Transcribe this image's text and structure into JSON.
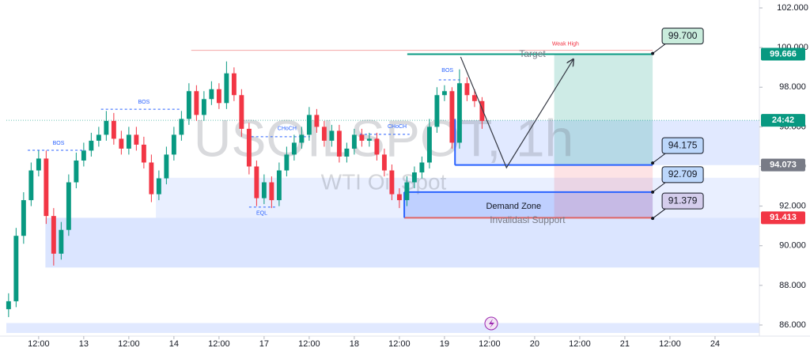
{
  "chart_data": {
    "type": "candlestick",
    "watermark": "USOILSPOT, 1h",
    "watermark_subtitle": "WTI Oil Spot",
    "up_color": "#089981",
    "down_color": "#f23645",
    "x": [
      -8,
      -6,
      -4,
      -2,
      0,
      2,
      4,
      6,
      8,
      10,
      12,
      14,
      16,
      18,
      20,
      22,
      24,
      26,
      28,
      30,
      32,
      34,
      36,
      38,
      40,
      42,
      44,
      46,
      48,
      50,
      52,
      54,
      56,
      58,
      60,
      62,
      64,
      66,
      68,
      70,
      72,
      74,
      76,
      78,
      80,
      82,
      84,
      86,
      88,
      90,
      92,
      94,
      96,
      98,
      100,
      102,
      104,
      106,
      108,
      110,
      112,
      114,
      116,
      118
    ],
    "series": [
      {
        "name": "open",
        "values": [
          86.8,
          87.2,
          90.5,
          92.3,
          93.8,
          94.4,
          91.5,
          89.6,
          90.8,
          93.2,
          94.3,
          94.8,
          95.3,
          95.6,
          96.3,
          95.4,
          94.9,
          95.6,
          95.1,
          94.2,
          92.6,
          93.4,
          94.6,
          95.6,
          96.4,
          97.8,
          96.6,
          97.4,
          97.9,
          97.2,
          98.7,
          97.6,
          95.9,
          94.0,
          92.4,
          93.2,
          92.3,
          93.8,
          94.6,
          95.2,
          95.6,
          96.6,
          96.0,
          95.3,
          95.8,
          94.5,
          94.9,
          95.6,
          95.3,
          95.4,
          94.6,
          93.8,
          92.6,
          92.3,
          93.2,
          93.7,
          94.2,
          96.0,
          97.6,
          97.8,
          95.2,
          98.2,
          97.6,
          97.3
        ]
      },
      {
        "name": "high",
        "values": [
          87.6,
          90.9,
          92.7,
          94.2,
          94.8,
          94.8,
          91.9,
          91.2,
          93.6,
          94.7,
          95.2,
          95.7,
          96.0,
          96.8,
          96.7,
          95.8,
          96.0,
          96.0,
          95.5,
          94.6,
          93.8,
          95.0,
          96.0,
          96.8,
          98.2,
          98.1,
          97.8,
          98.3,
          98.2,
          99.3,
          99.0,
          97.9,
          96.2,
          94.3,
          93.6,
          93.5,
          94.2,
          95.0,
          95.6,
          96.0,
          97.0,
          96.9,
          96.3,
          96.1,
          96.1,
          95.2,
          95.9,
          95.9,
          95.7,
          95.7,
          94.9,
          94.1,
          92.9,
          93.5,
          94.0,
          94.5,
          96.4,
          98.0,
          98.1,
          98.0,
          98.9,
          98.5,
          97.9,
          97.5
        ]
      },
      {
        "name": "low",
        "values": [
          86.4,
          86.9,
          90.1,
          92.0,
          93.5,
          91.1,
          89.0,
          89.3,
          90.5,
          92.9,
          94.0,
          94.5,
          95.0,
          95.3,
          95.1,
          94.6,
          94.6,
          94.8,
          93.9,
          92.2,
          92.3,
          93.1,
          94.3,
          95.3,
          96.1,
          96.3,
          96.3,
          97.1,
          96.9,
          96.9,
          97.3,
          95.5,
          93.6,
          92.0,
          92.1,
          91.9,
          92.0,
          93.5,
          94.3,
          94.9,
          95.3,
          95.7,
          95.0,
          95.0,
          94.2,
          94.2,
          94.6,
          95.0,
          95.0,
          94.3,
          93.5,
          92.3,
          91.9,
          92.0,
          92.9,
          93.4,
          93.9,
          95.7,
          97.3,
          94.9,
          94.9,
          97.3,
          97.0,
          95.9
        ]
      },
      {
        "name": "close",
        "values": [
          87.2,
          90.5,
          92.3,
          93.8,
          94.4,
          91.5,
          89.6,
          90.8,
          93.2,
          94.3,
          94.8,
          95.3,
          95.6,
          96.3,
          95.4,
          94.9,
          95.6,
          95.1,
          94.2,
          92.6,
          93.4,
          94.6,
          95.6,
          96.4,
          97.8,
          96.6,
          97.4,
          97.9,
          97.2,
          98.7,
          97.6,
          95.9,
          94.0,
          92.4,
          93.2,
          92.3,
          93.8,
          94.6,
          95.2,
          95.6,
          96.6,
          96.0,
          95.3,
          95.8,
          94.5,
          94.9,
          95.6,
          95.3,
          95.4,
          94.6,
          93.8,
          92.6,
          92.3,
          93.2,
          93.7,
          94.2,
          96.0,
          97.6,
          97.8,
          95.2,
          98.2,
          97.6,
          97.3,
          96.3
        ]
      }
    ],
    "xlim": [
      -8.6,
      191.8
    ],
    "xticks": [
      {
        "value": 0,
        "label": "12:00"
      },
      {
        "value": 12,
        "label": "13"
      },
      {
        "value": 24,
        "label": "12:00"
      },
      {
        "value": 36,
        "label": "14"
      },
      {
        "value": 48,
        "label": "12:00"
      },
      {
        "value": 60,
        "label": "17"
      },
      {
        "value": 72,
        "label": "12:00"
      },
      {
        "value": 84,
        "label": "18"
      },
      {
        "value": 96,
        "label": "12:00"
      },
      {
        "value": 108,
        "label": "19"
      },
      {
        "value": 120,
        "label": "12:00"
      },
      {
        "value": 132,
        "label": "20"
      },
      {
        "value": 144,
        "label": "12:00"
      },
      {
        "value": 156,
        "label": "21"
      },
      {
        "value": 168,
        "label": "12:00"
      },
      {
        "value": 180,
        "label": "24"
      }
    ],
    "ylim": [
      85.44,
      102.4
    ],
    "yticks": [
      {
        "value": 86,
        "label": "86.000"
      },
      {
        "value": 88,
        "label": "88.000"
      },
      {
        "value": 90,
        "label": "90.000"
      },
      {
        "value": 92,
        "label": "92.000"
      },
      {
        "value": 94,
        "label": "94.000"
      },
      {
        "value": 96,
        "label": "96.000"
      },
      {
        "value": 98,
        "label": "98.000"
      },
      {
        "value": 100,
        "label": "100.000"
      },
      {
        "value": 102,
        "label": "102.000"
      }
    ],
    "zones": [
      {
        "x": [
          1.8,
          191.8
        ],
        "y": [
          88.9,
          91.41
        ],
        "color": "#2962ff",
        "opacity": 0.17
      },
      {
        "x": [
          31.2,
          191.8
        ],
        "y": [
          91.41,
          93.43
        ],
        "color": "#2962ff",
        "opacity": 0.1
      },
      {
        "x": [
          110.8,
          191.8
        ],
        "y": [
          94.07,
          96.33
        ],
        "color": "#2962ff",
        "opacity": 0.14
      },
      {
        "x": [
          97.3,
          163.4
        ],
        "y": [
          91.41,
          92.709
        ],
        "color": "#2962ff",
        "opacity": 0.22
      },
      {
        "x": [
          -8.6,
          191.8
        ],
        "y": [
          85.6,
          86.1
        ],
        "color": "#2962ff",
        "opacity": 0.14
      },
      {
        "x": [
          137.2,
          163.4
        ],
        "y": [
          94.073,
          99.666
        ],
        "color": "#089981",
        "opacity": 0.2
      },
      {
        "x": [
          137.2,
          163.4
        ],
        "y": [
          91.413,
          94.073
        ],
        "color": "#f23645",
        "opacity": 0.14
      }
    ],
    "lines": [
      {
        "x": [
          40.6,
          163.4
        ],
        "y": [
          99.86,
          99.86
        ],
        "color": "#f4a6a6",
        "dashed": false,
        "width": 1
      },
      {
        "x": [
          98.1,
          163.4
        ],
        "y": [
          99.666,
          99.666
        ],
        "color": "#089981",
        "dashed": false,
        "width": 2
      },
      {
        "x": [
          -2.9,
          12.4
        ],
        "y": [
          94.82,
          94.82
        ],
        "color": "#2962ff",
        "dashed": true,
        "width": 1
      },
      {
        "x": [
          16.6,
          37.5
        ],
        "y": [
          96.89,
          96.89
        ],
        "color": "#2962ff",
        "dashed": true,
        "width": 1
      },
      {
        "x": [
          106.5,
          112.2
        ],
        "y": [
          98.37,
          98.37
        ],
        "color": "#2962ff",
        "dashed": true,
        "width": 1
      },
      {
        "x": [
          56.6,
          72.2
        ],
        "y": [
          95.5,
          95.5
        ],
        "color": "#2962ff",
        "dashed": true,
        "width": 1
      },
      {
        "x": [
          85.5,
          98.7
        ],
        "y": [
          95.62,
          95.62
        ],
        "color": "#2962ff",
        "dashed": true,
        "width": 1
      },
      {
        "x": [
          56.0,
          63.0
        ],
        "y": [
          91.95,
          91.95
        ],
        "color": "#2962ff",
        "dashed": true,
        "width": 1
      },
      {
        "x": [
          110.8,
          163.4
        ],
        "y": [
          94.073,
          94.073
        ],
        "color": "#2962ff",
        "dashed": false,
        "width": 2
      },
      {
        "x": [
          97.3,
          163.4
        ],
        "y": [
          92.709,
          92.709
        ],
        "color": "#2962ff",
        "dashed": false,
        "width": 2
      },
      {
        "x": [
          97.3,
          163.4
        ],
        "y": [
          91.413,
          91.413
        ],
        "color": "#e06666",
        "dashed": false,
        "width": 2
      },
      {
        "x": [
          110.8,
          110.8
        ],
        "y": [
          94.073,
          96.4
        ],
        "color": "#2962ff",
        "dashed": false,
        "width": 2
      },
      {
        "x": [
          97.3,
          97.3
        ],
        "y": [
          91.413,
          92.709
        ],
        "color": "#2962ff",
        "dashed": false,
        "width": 2
      }
    ],
    "path": {
      "x": [
        112.3,
        124.5,
        142.3
      ],
      "y": [
        99.53,
        93.94,
        99.41
      ],
      "color": "#363a45"
    },
    "labels": [
      {
        "text": "BOS",
        "x": 5.3,
        "y": 95.18,
        "color": "#2962ff",
        "size": 7
      },
      {
        "text": "BOS",
        "x": 28,
        "y": 97.25,
        "color": "#2962ff",
        "size": 7
      },
      {
        "text": "BOS",
        "x": 108.8,
        "y": 98.85,
        "color": "#2962ff",
        "size": 7
      },
      {
        "text": "CHoCH",
        "x": 66.1,
        "y": 95.9,
        "color": "#2962ff",
        "size": 7
      },
      {
        "text": "CHoCH",
        "x": 95.4,
        "y": 96.0,
        "color": "#2962ff",
        "size": 7
      },
      {
        "text": "EQL",
        "x": 59.4,
        "y": 91.63,
        "color": "#2962ff",
        "size": 7
      },
      {
        "text": "Weak High",
        "x": 140.2,
        "y": 100.17,
        "color": "#f23645",
        "size": 7
      },
      {
        "text": "Target",
        "x": 131.4,
        "y": 99.65,
        "color": "#787b86",
        "size": 12
      },
      {
        "text": "Demand Zone",
        "x": 126.4,
        "y": 91.98,
        "color": "#131722",
        "size": 11
      },
      {
        "text": "Invalidasi Support",
        "x": 130.1,
        "y": 91.27,
        "color": "#787b86",
        "size": 12
      }
    ],
    "callouts": [
      {
        "x": 163.4,
        "value": 99.7,
        "label": "99.700",
        "color": "#c9ecdc"
      },
      {
        "x": 163.4,
        "value": 94.175,
        "label": "94.175",
        "color": "#bcd7fb"
      },
      {
        "x": 163.4,
        "value": 92.709,
        "label": "92.709",
        "color": "#bcd7fb"
      },
      {
        "x": 163.4,
        "value": 91.379,
        "label": "91.379",
        "color": "#d4cdec"
      }
    ],
    "price_labels": [
      {
        "value": 99.666,
        "label": "99.666",
        "color": "#089981"
      },
      {
        "value": 94.073,
        "label": "94.073",
        "color": "#787b86"
      },
      {
        "value": 91.413,
        "label": "91.413",
        "color": "#f23645"
      }
    ],
    "last_price": 96.33,
    "countdown": "24:42"
  }
}
